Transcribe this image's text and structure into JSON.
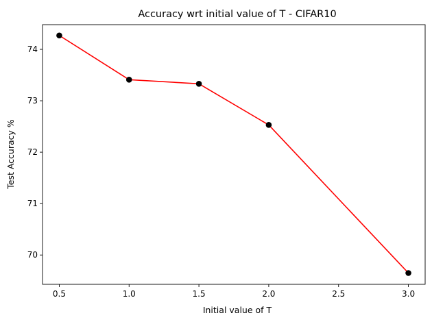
{
  "chart_data": {
    "type": "line",
    "title": "Accuracy wrt initial value of T - CIFAR10",
    "xlabel": "Initial value of T",
    "ylabel": "Test Accuracy %",
    "x": [
      0.5,
      1.0,
      1.5,
      2.0,
      3.0
    ],
    "series": [
      {
        "values": [
          74.27,
          73.41,
          73.33,
          72.53,
          69.65
        ],
        "line_color": "#ff0000",
        "marker_color": "#000000"
      }
    ],
    "xlim": [
      0.38,
      3.12
    ],
    "ylim": [
      69.43,
      74.48
    ],
    "xticks": [
      0.5,
      1.0,
      1.5,
      2.0,
      2.5,
      3.0
    ],
    "xtick_labels": [
      "0.5",
      "1.0",
      "1.5",
      "2.0",
      "2.5",
      "3.0"
    ],
    "yticks": [
      70,
      71,
      72,
      73,
      74
    ],
    "ytick_labels": [
      "70",
      "71",
      "72",
      "73",
      "74"
    ],
    "grid": false,
    "legend": "none"
  }
}
